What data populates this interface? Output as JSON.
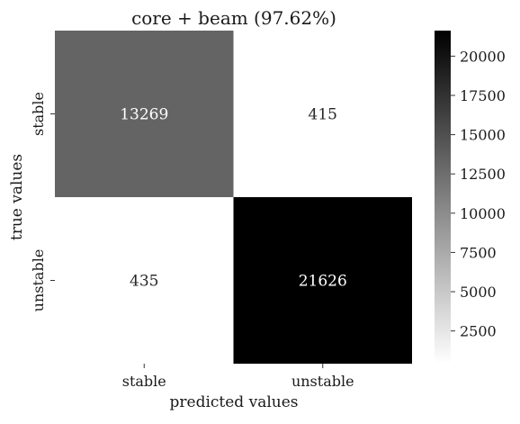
{
  "chart_data": {
    "type": "heatmap",
    "title": "core + beam (97.62%)",
    "xlabel": "predicted values",
    "ylabel": "true values",
    "x_categories": [
      "stable",
      "unstable"
    ],
    "y_categories": [
      "stable",
      "unstable"
    ],
    "values": [
      [
        13269,
        415
      ],
      [
        435,
        21626
      ]
    ],
    "cell_labels": [
      [
        "13269",
        "415"
      ],
      [
        "435",
        "21626"
      ]
    ],
    "colormap": {
      "low": "#ffffff",
      "high": "#000000"
    },
    "colorbar": {
      "range": [
        415,
        21626
      ],
      "ticks": [
        2500,
        5000,
        7500,
        10000,
        12500,
        15000,
        17500,
        20000
      ],
      "tick_labels": [
        "2500",
        "5000",
        "7500",
        "10000",
        "12500",
        "15000",
        "17500",
        "20000"
      ]
    },
    "grid": false,
    "legend": "colorbar-right"
  }
}
